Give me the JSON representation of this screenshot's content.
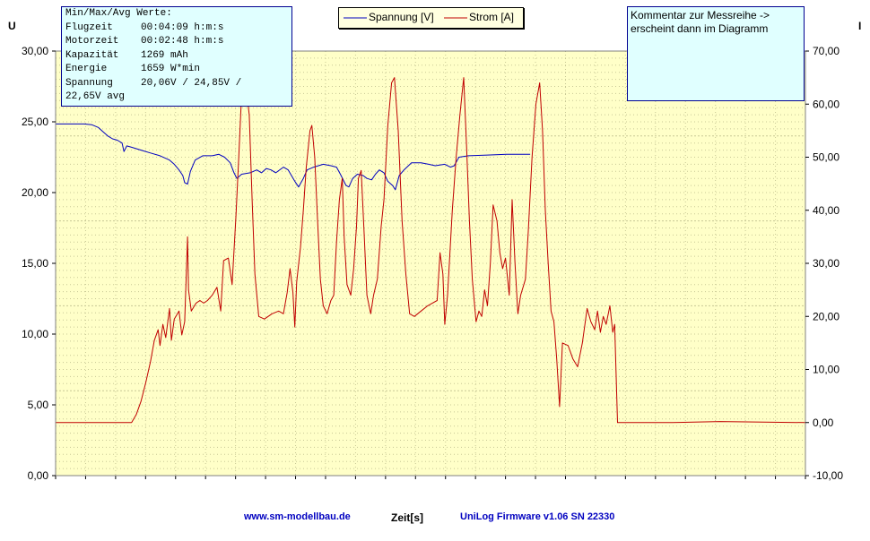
{
  "chart_data": {
    "type": "line",
    "xlabel": "Zeit[s]",
    "ylabel_left": "U",
    "ylabel_right": "I",
    "y_left_lim": [
      0,
      30
    ],
    "y_left_ticks": [
      "0,00",
      "5,00",
      "10,00",
      "15,00",
      "20,00",
      "25,00",
      "30,00"
    ],
    "y_right_lim": [
      -10,
      70
    ],
    "y_right_ticks": [
      "-10,00",
      "0,00",
      "10,00",
      "20,00",
      "30,00",
      "40,00",
      "50,00",
      "60,00",
      "70,00"
    ],
    "grid": true,
    "legend_position": "top-center",
    "series": [
      {
        "name": "Spannung [V]",
        "axis": "left",
        "color": "#0000c0",
        "points": [
          [
            0,
            24.85
          ],
          [
            30,
            24.85
          ],
          [
            38,
            24.8
          ],
          [
            45,
            24.6
          ],
          [
            50,
            24.3
          ],
          [
            55,
            24.0
          ],
          [
            60,
            23.8
          ],
          [
            65,
            23.7
          ],
          [
            70,
            23.5
          ],
          [
            72,
            22.9
          ],
          [
            75,
            23.3
          ],
          [
            80,
            23.2
          ],
          [
            90,
            23.0
          ],
          [
            100,
            22.8
          ],
          [
            110,
            22.6
          ],
          [
            120,
            22.3
          ],
          [
            125,
            22.0
          ],
          [
            130,
            21.6
          ],
          [
            134,
            21.2
          ],
          [
            136,
            20.7
          ],
          [
            139,
            20.6
          ],
          [
            142,
            21.5
          ],
          [
            147,
            22.3
          ],
          [
            155,
            22.6
          ],
          [
            165,
            22.6
          ],
          [
            172,
            22.7
          ],
          [
            178,
            22.5
          ],
          [
            184,
            22.1
          ],
          [
            188,
            21.4
          ],
          [
            191,
            21.0
          ],
          [
            196,
            21.3
          ],
          [
            205,
            21.4
          ],
          [
            212,
            21.6
          ],
          [
            217,
            21.4
          ],
          [
            222,
            21.7
          ],
          [
            227,
            21.6
          ],
          [
            232,
            21.4
          ],
          [
            240,
            21.8
          ],
          [
            245,
            21.6
          ],
          [
            252,
            20.8
          ],
          [
            256,
            20.4
          ],
          [
            261,
            21.0
          ],
          [
            265,
            21.6
          ],
          [
            272,
            21.8
          ],
          [
            282,
            22.0
          ],
          [
            290,
            21.9
          ],
          [
            296,
            21.8
          ],
          [
            300,
            21.3
          ],
          [
            306,
            20.5
          ],
          [
            309,
            20.4
          ],
          [
            313,
            21.0
          ],
          [
            318,
            21.3
          ],
          [
            324,
            21.2
          ],
          [
            328,
            21.0
          ],
          [
            333,
            20.9
          ],
          [
            337,
            21.3
          ],
          [
            341,
            21.6
          ],
          [
            346,
            21.4
          ],
          [
            350,
            20.8
          ],
          [
            355,
            20.5
          ],
          [
            358,
            20.2
          ],
          [
            362,
            21.2
          ],
          [
            367,
            21.6
          ],
          [
            375,
            22.1
          ],
          [
            385,
            22.1
          ],
          [
            393,
            22.0
          ],
          [
            400,
            21.9
          ],
          [
            410,
            22.0
          ],
          [
            416,
            21.8
          ],
          [
            420,
            21.9
          ],
          [
            425,
            22.5
          ],
          [
            435,
            22.6
          ],
          [
            455,
            22.65
          ],
          [
            475,
            22.7
          ],
          [
            500,
            22.7
          ]
        ]
      },
      {
        "name": "Strom [A]",
        "axis": "right",
        "color": "#c00000",
        "points": [
          [
            0,
            0.0
          ],
          [
            38,
            0.0
          ],
          [
            80,
            0.0
          ],
          [
            85,
            1.5
          ],
          [
            90,
            4.0
          ],
          [
            95,
            7.5
          ],
          [
            100,
            11.5
          ],
          [
            104,
            15.5
          ],
          [
            108,
            17.5
          ],
          [
            110,
            14.5
          ],
          [
            113,
            18.5
          ],
          [
            116,
            16.0
          ],
          [
            120,
            21.5
          ],
          [
            122,
            15.5
          ],
          [
            125,
            19.5
          ],
          [
            130,
            21.0
          ],
          [
            133,
            16.5
          ],
          [
            136,
            19.0
          ],
          [
            139,
            35.0
          ],
          [
            140,
            25.0
          ],
          [
            143,
            21.0
          ],
          [
            148,
            22.5
          ],
          [
            152,
            23.0
          ],
          [
            156,
            22.5
          ],
          [
            160,
            23.0
          ],
          [
            165,
            24.0
          ],
          [
            170,
            25.5
          ],
          [
            174,
            21.0
          ],
          [
            177,
            30.5
          ],
          [
            182,
            31.0
          ],
          [
            186,
            26.0
          ],
          [
            190,
            39.0
          ],
          [
            193,
            50.0
          ],
          [
            196,
            62.0
          ],
          [
            200,
            64.0
          ],
          [
            204,
            58.0
          ],
          [
            207,
            42.0
          ],
          [
            210,
            28.0
          ],
          [
            214,
            20.0
          ],
          [
            220,
            19.5
          ],
          [
            228,
            20.5
          ],
          [
            235,
            21.0
          ],
          [
            240,
            20.5
          ],
          [
            244,
            24.5
          ],
          [
            247,
            29.0
          ],
          [
            250,
            24.5
          ],
          [
            252,
            18.0
          ],
          [
            254,
            26.5
          ],
          [
            258,
            33.0
          ],
          [
            261,
            40.0
          ],
          [
            264,
            48.0
          ],
          [
            268,
            55.0
          ],
          [
            270,
            56.0
          ],
          [
            273,
            50.0
          ],
          [
            276,
            38.0
          ],
          [
            279,
            27.0
          ],
          [
            282,
            22.0
          ],
          [
            286,
            20.5
          ],
          [
            290,
            23.0
          ],
          [
            293,
            24.0
          ],
          [
            296,
            34.0
          ],
          [
            299,
            42.0
          ],
          [
            302,
            46.0
          ],
          [
            304,
            35.0
          ],
          [
            307,
            26.0
          ],
          [
            311,
            24.0
          ],
          [
            314,
            29.0
          ],
          [
            317,
            37.0
          ],
          [
            319,
            46.0
          ],
          [
            322,
            47.5
          ],
          [
            325,
            36.0
          ],
          [
            328,
            24.0
          ],
          [
            332,
            20.5
          ],
          [
            335,
            24.0
          ],
          [
            339,
            27.0
          ],
          [
            343,
            37.0
          ],
          [
            346,
            42.0
          ],
          [
            350,
            56.0
          ],
          [
            354,
            64.0
          ],
          [
            357,
            65.0
          ],
          [
            361,
            55.0
          ],
          [
            365,
            38.0
          ],
          [
            369,
            28.0
          ],
          [
            373,
            20.5
          ],
          [
            378,
            20.0
          ],
          [
            385,
            21.0
          ],
          [
            392,
            22.0
          ],
          [
            397,
            22.5
          ],
          [
            402,
            23.0
          ],
          [
            405,
            32.0
          ],
          [
            408,
            28.0
          ],
          [
            410,
            18.5
          ],
          [
            413,
            24.0
          ],
          [
            418,
            40.0
          ],
          [
            422,
            50.0
          ],
          [
            426,
            58.0
          ],
          [
            430,
            65.0
          ],
          [
            433,
            52.0
          ],
          [
            436,
            38.0
          ],
          [
            439,
            27.0
          ],
          [
            443,
            19.0
          ],
          [
            446,
            21.0
          ],
          [
            449,
            20.0
          ],
          [
            452,
            25.0
          ],
          [
            455,
            22.0
          ],
          [
            458,
            30.0
          ],
          [
            461,
            41.0
          ],
          [
            465,
            38.0
          ],
          [
            468,
            32.0
          ],
          [
            471,
            29.0
          ],
          [
            474,
            31.0
          ],
          [
            478,
            24.0
          ],
          [
            481,
            42.0
          ],
          [
            484,
            30.0
          ],
          [
            487,
            20.5
          ],
          [
            490,
            24.0
          ],
          [
            495,
            27.0
          ],
          [
            498,
            36.0
          ],
          [
            502,
            50.0
          ],
          [
            506,
            60.0
          ],
          [
            510,
            64.0
          ],
          [
            513,
            55.0
          ],
          [
            516,
            40.0
          ],
          [
            519,
            30.0
          ],
          [
            522,
            21.0
          ],
          [
            525,
            19.0
          ],
          [
            528,
            12.0
          ],
          [
            531,
            3.0
          ],
          [
            534,
            15.0
          ],
          [
            540,
            14.5
          ],
          [
            545,
            12.0
          ],
          [
            550,
            10.5
          ],
          [
            555,
            15.0
          ],
          [
            560,
            21.5
          ],
          [
            564,
            19.0
          ],
          [
            568,
            17.5
          ],
          [
            571,
            21.0
          ],
          [
            574,
            17.0
          ],
          [
            577,
            20.0
          ],
          [
            580,
            18.5
          ],
          [
            584,
            22.0
          ],
          [
            587,
            17.0
          ],
          [
            589,
            18.5
          ],
          [
            592,
            0.0
          ],
          [
            600,
            0.0
          ],
          [
            625,
            0.0
          ],
          [
            650,
            0.0
          ],
          [
            700,
            0.2
          ],
          [
            790,
            0.0
          ]
        ]
      }
    ]
  },
  "legend": {
    "spannung_label": "Spannung [V]",
    "strom_label": "Strom [A]"
  },
  "stats": {
    "title": "Min/Max/Avg Werte:",
    "rows": [
      {
        "key": "Flugzeit",
        "value": "00:04:09 h:m:s"
      },
      {
        "key": "Motorzeit",
        "value": "00:02:48 h:m:s"
      },
      {
        "key": "Kapazität",
        "value": "1269 mAh"
      },
      {
        "key": "Energie",
        "value": "1659 W*min"
      },
      {
        "key": "Spannung",
        "value": "20,06V / 24,85V /"
      }
    ],
    "continuation": "22,65V avg"
  },
  "comment": {
    "line1": "Kommentar zur Messreihe ->",
    "line2": "erscheint dann im Diagramm"
  },
  "footer": {
    "website": "www.sm-modellbau.de",
    "firmware": "UniLog Firmware v1.06 SN 22330"
  },
  "colors": {
    "plot_background": "#ffffc8",
    "grid": "#c8c896",
    "voltage": "#0000c0",
    "current": "#c00000",
    "info_box": "#e0ffff"
  }
}
